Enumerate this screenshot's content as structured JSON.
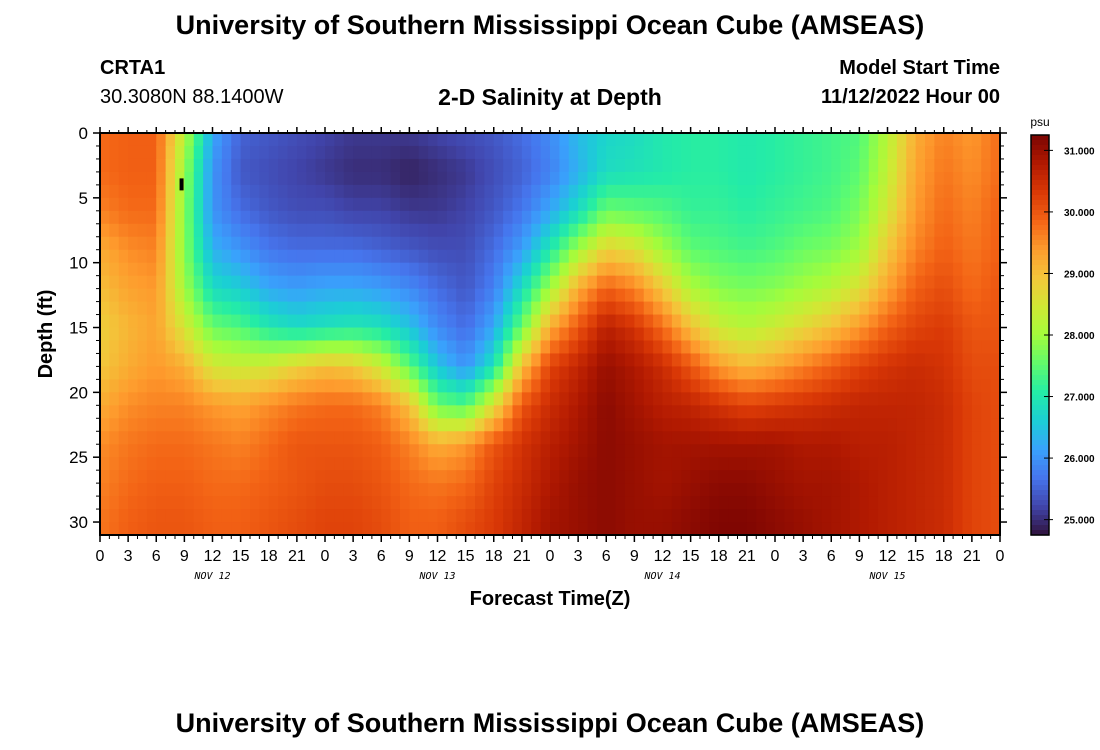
{
  "header": {
    "title": "University of Southern Mississippi Ocean Cube (AMSEAS)",
    "station_id": "CRTA1",
    "station_coords": "30.3080N  88.1400W",
    "plot_title": "2-D Salinity at Depth",
    "model_start_label": "Model Start Time",
    "model_start_value": "11/12/2022 Hour 00"
  },
  "footer": {
    "title": "University of Southern Mississippi Ocean Cube (AMSEAS)"
  },
  "chart_data": {
    "type": "heatmap",
    "title": "2-D Salinity at Depth",
    "xlabel": "Forecast Time(Z)",
    "ylabel": "Depth (ft)",
    "xlim": [
      0,
      96
    ],
    "ylim": [
      0,
      31
    ],
    "x_tick_values": [
      0,
      3,
      6,
      9,
      12,
      15,
      18,
      21,
      24,
      27,
      30,
      33,
      36,
      39,
      42,
      45,
      48,
      51,
      54,
      57,
      60,
      63,
      66,
      69,
      72,
      75,
      78,
      81,
      84,
      87,
      90,
      93,
      96
    ],
    "x_tick_labels": [
      "0",
      "3",
      "6",
      "9",
      "12",
      "15",
      "18",
      "21",
      "0",
      "3",
      "6",
      "9",
      "12",
      "15",
      "18",
      "21",
      "0",
      "3",
      "6",
      "9",
      "12",
      "15",
      "18",
      "21",
      "0",
      "3",
      "6",
      "9",
      "12",
      "15",
      "18",
      "21",
      "0"
    ],
    "date_labels": [
      {
        "x": 12,
        "label": "NOV 12"
      },
      {
        "x": 36,
        "label": "NOV 13"
      },
      {
        "x": 60,
        "label": "NOV 14"
      },
      {
        "x": 84,
        "label": "NOV 15"
      }
    ],
    "y_tick_values": [
      0,
      5,
      10,
      15,
      20,
      25,
      30
    ],
    "y_tick_labels": [
      "0",
      "5",
      "10",
      "15",
      "20",
      "25",
      "30"
    ],
    "colorbar": {
      "unit": "psu",
      "min": 24.75,
      "max": 31.25,
      "ticks": [
        25.0,
        26.0,
        27.0,
        28.0,
        29.0,
        30.0,
        31.0
      ],
      "tick_labels": [
        "25.000",
        "26.000",
        "27.000",
        "28.000",
        "29.000",
        "30.000",
        "31.000"
      ],
      "colors": [
        "#30123b",
        "#4145ab",
        "#4675ed",
        "#39a2fc",
        "#1bcfd4",
        "#24eca6",
        "#61fc6c",
        "#a4fc3b",
        "#d1e834",
        "#f3c63a",
        "#fe9b2d",
        "#f36315",
        "#d93806",
        "#b11901",
        "#7a0402"
      ]
    },
    "time_hours": [
      0,
      3,
      6,
      9,
      12,
      15,
      18,
      21,
      24,
      27,
      30,
      33,
      36,
      39,
      42,
      45,
      48,
      51,
      54,
      57,
      60,
      63,
      66,
      69,
      72,
      75,
      78,
      81,
      84,
      87,
      90,
      93,
      96
    ],
    "depth_ft": [
      0,
      3,
      6,
      9,
      12,
      15,
      18,
      21,
      24,
      27,
      30,
      31
    ],
    "salinity_psu": [
      [
        29.8,
        29.8,
        29.6,
        29.2,
        29.0,
        28.8,
        28.9,
        29.2,
        29.5,
        29.6,
        29.7,
        29.7
      ],
      [
        29.9,
        29.9,
        29.8,
        29.5,
        29.3,
        29.1,
        29.2,
        29.5,
        29.7,
        29.8,
        29.9,
        29.9
      ],
      [
        29.9,
        29.9,
        29.8,
        29.6,
        29.4,
        29.3,
        29.4,
        29.6,
        29.8,
        29.9,
        30.0,
        30.0
      ],
      [
        28.2,
        27.9,
        27.8,
        27.8,
        28.0,
        28.5,
        29.2,
        29.6,
        29.8,
        29.9,
        30.0,
        30.0
      ],
      [
        26.2,
        26.0,
        26.0,
        26.3,
        26.8,
        27.6,
        28.5,
        29.4,
        29.7,
        29.8,
        29.9,
        29.9
      ],
      [
        25.5,
        25.4,
        25.6,
        26.0,
        26.6,
        27.4,
        28.4,
        29.3,
        29.6,
        29.8,
        29.9,
        29.9
      ],
      [
        25.4,
        25.3,
        25.4,
        25.7,
        26.2,
        27.0,
        28.5,
        29.5,
        29.8,
        29.9,
        30.0,
        30.0
      ],
      [
        25.3,
        25.2,
        25.3,
        25.6,
        26.1,
        26.8,
        28.8,
        29.7,
        30.0,
        30.0,
        30.1,
        30.1
      ],
      [
        25.2,
        25.1,
        25.3,
        25.6,
        26.2,
        26.9,
        29.0,
        29.8,
        30.0,
        30.1,
        30.2,
        30.2
      ],
      [
        25.1,
        25.0,
        25.2,
        25.6,
        26.2,
        27.0,
        28.9,
        29.8,
        30.0,
        30.1,
        30.2,
        30.2
      ],
      [
        25.1,
        25.0,
        25.2,
        25.5,
        26.1,
        26.9,
        28.4,
        29.6,
        29.9,
        30.0,
        30.1,
        30.1
      ],
      [
        25.1,
        24.9,
        25.1,
        25.4,
        25.9,
        26.5,
        27.5,
        29.0,
        29.6,
        29.8,
        29.9,
        29.9
      ],
      [
        25.2,
        25.0,
        25.1,
        25.3,
        25.6,
        25.9,
        26.5,
        27.6,
        29.2,
        29.7,
        29.9,
        29.9
      ],
      [
        25.3,
        25.1,
        25.2,
        25.3,
        25.4,
        25.6,
        26.0,
        27.4,
        29.4,
        29.8,
        30.1,
        30.1
      ],
      [
        25.4,
        25.3,
        25.4,
        25.6,
        25.8,
        26.2,
        26.9,
        28.6,
        30.0,
        30.2,
        30.3,
        30.3
      ],
      [
        25.6,
        25.5,
        25.7,
        26.1,
        26.8,
        27.6,
        29.0,
        30.0,
        30.4,
        30.5,
        30.6,
        30.6
      ],
      [
        25.9,
        25.8,
        26.2,
        27.0,
        28.0,
        29.2,
        30.2,
        30.5,
        30.7,
        30.8,
        30.9,
        30.9
      ],
      [
        26.4,
        26.3,
        26.8,
        28.0,
        29.2,
        30.0,
        30.6,
        30.8,
        30.9,
        31.0,
        31.0,
        31.0
      ],
      [
        26.7,
        26.8,
        27.6,
        28.8,
        29.9,
        30.7,
        31.0,
        31.1,
        31.1,
        31.1,
        31.1,
        31.1
      ],
      [
        26.8,
        26.9,
        27.5,
        28.6,
        29.6,
        30.4,
        30.8,
        30.9,
        31.0,
        31.0,
        31.0,
        31.0
      ],
      [
        27.0,
        27.0,
        27.4,
        28.0,
        28.9,
        29.8,
        30.5,
        30.7,
        30.9,
        30.9,
        31.0,
        31.0
      ],
      [
        27.1,
        27.1,
        27.2,
        27.5,
        28.1,
        29.0,
        30.0,
        30.6,
        30.9,
        31.0,
        31.1,
        31.1
      ],
      [
        27.1,
        27.1,
        27.2,
        27.4,
        27.8,
        28.4,
        29.4,
        30.4,
        30.9,
        31.1,
        31.2,
        31.2
      ],
      [
        27.0,
        27.0,
        27.1,
        27.3,
        27.7,
        28.2,
        29.1,
        30.2,
        30.9,
        31.1,
        31.2,
        31.2
      ],
      [
        27.1,
        27.1,
        27.2,
        27.4,
        27.8,
        28.4,
        29.3,
        30.3,
        30.9,
        31.0,
        31.1,
        31.1
      ],
      [
        27.2,
        27.2,
        27.3,
        27.6,
        28.0,
        28.7,
        29.6,
        30.4,
        30.8,
        30.9,
        31.0,
        31.0
      ],
      [
        27.3,
        27.3,
        27.4,
        27.7,
        28.2,
        29.0,
        29.9,
        30.5,
        30.8,
        30.9,
        30.9,
        30.9
      ],
      [
        27.4,
        27.5,
        27.7,
        28.0,
        28.6,
        29.4,
        30.2,
        30.6,
        30.7,
        30.8,
        30.8,
        30.8
      ],
      [
        28.2,
        28.3,
        28.5,
        28.9,
        29.3,
        29.9,
        30.4,
        30.6,
        30.7,
        30.7,
        30.7,
        30.7
      ],
      [
        29.2,
        29.3,
        29.4,
        29.6,
        29.9,
        30.2,
        30.5,
        30.6,
        30.6,
        30.6,
        30.6,
        30.6
      ],
      [
        29.6,
        29.7,
        29.8,
        29.9,
        30.1,
        30.3,
        30.4,
        30.5,
        30.5,
        30.5,
        30.5,
        30.5
      ],
      [
        29.4,
        29.5,
        29.6,
        29.7,
        29.8,
        30.0,
        30.1,
        30.2,
        30.2,
        30.2,
        30.2,
        30.2
      ],
      [
        29.8,
        29.8,
        29.9,
        29.9,
        30.0,
        30.0,
        30.1,
        30.1,
        30.1,
        30.1,
        30.1,
        30.1
      ]
    ]
  }
}
